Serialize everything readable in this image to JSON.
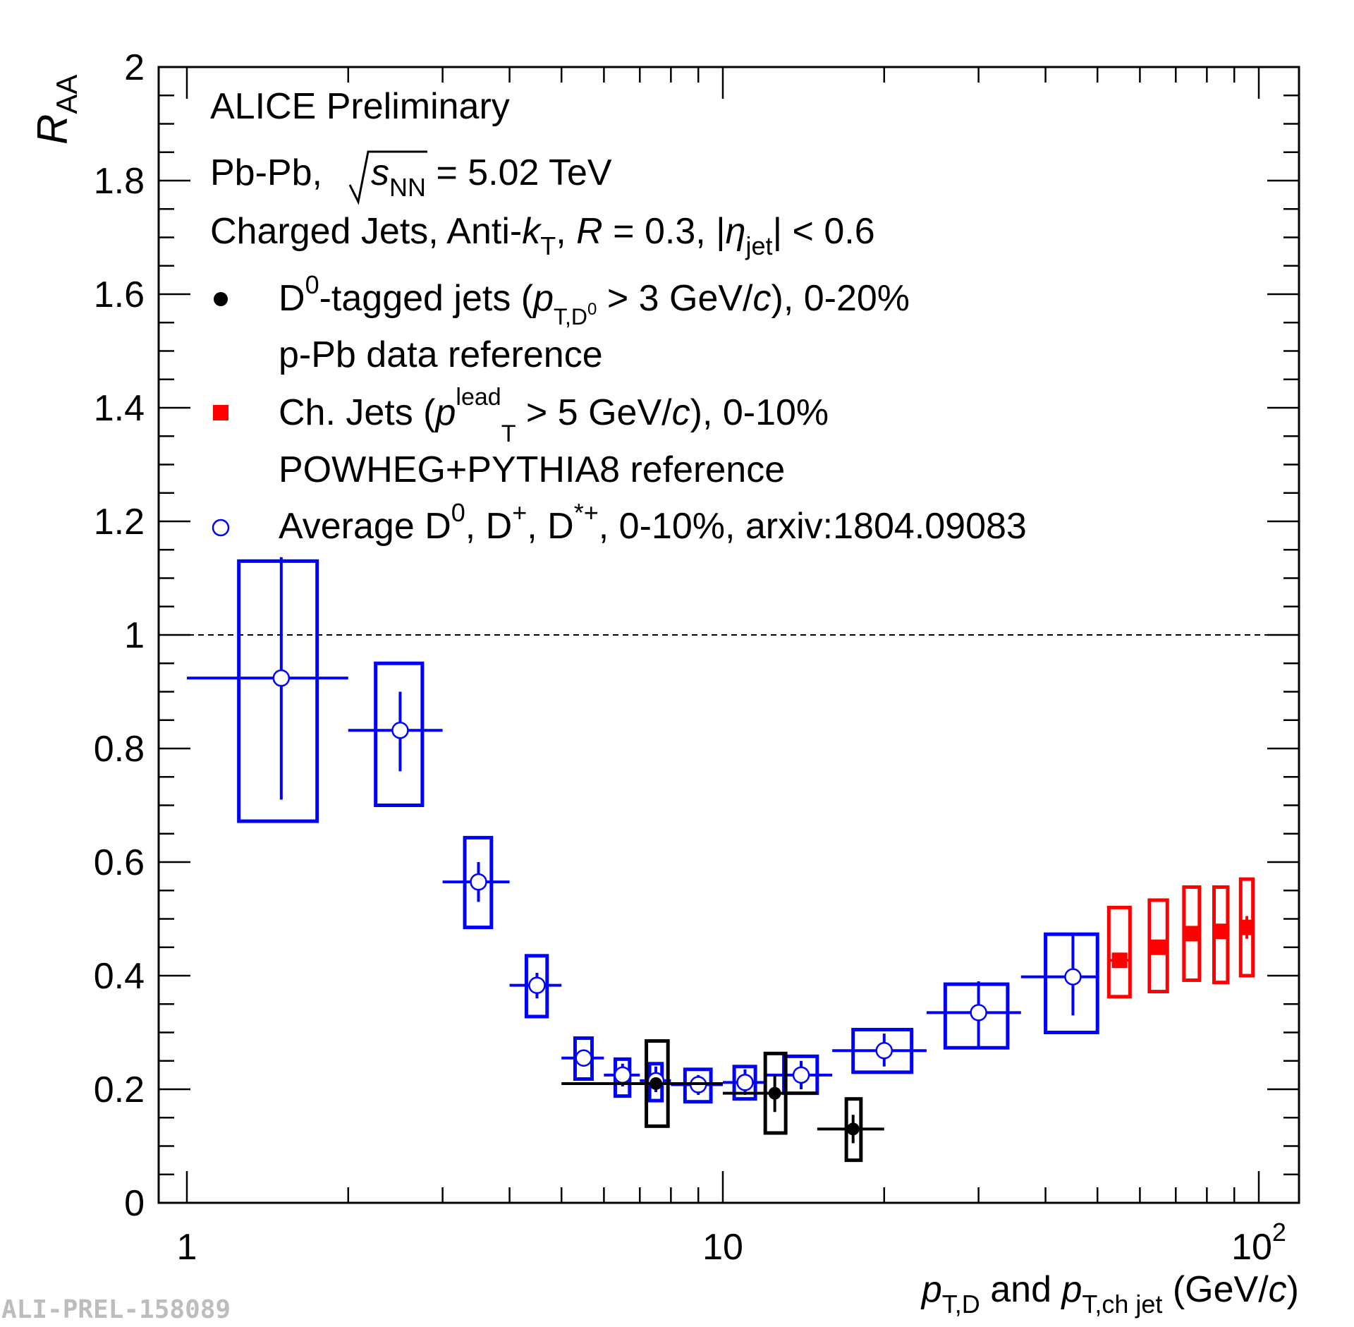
{
  "chart_data": {
    "type": "scatter",
    "x_scale": "log",
    "xlim": [
      1,
      120
    ],
    "ylim": [
      0,
      2
    ],
    "x_ticks": [
      {
        "value": 1,
        "label": "1"
      },
      {
        "value": 10,
        "label": "10"
      },
      {
        "value": 100,
        "label": "10",
        "sup": "2"
      }
    ],
    "y_ticks": [
      {
        "value": 0,
        "label": "0"
      },
      {
        "value": 0.2,
        "label": "0.2"
      },
      {
        "value": 0.4,
        "label": "0.4"
      },
      {
        "value": 0.6,
        "label": "0.6"
      },
      {
        "value": 0.8,
        "label": "0.8"
      },
      {
        "value": 1,
        "label": "1"
      },
      {
        "value": 1.2,
        "label": "1.2"
      },
      {
        "value": 1.4,
        "label": "1.4"
      },
      {
        "value": 1.6,
        "label": "1.6"
      },
      {
        "value": 1.8,
        "label": "1.8"
      },
      {
        "value": 2,
        "label": "2"
      }
    ],
    "ylabel": {
      "main": "R",
      "sub": "AA"
    },
    "xlabel": {
      "p1": "p",
      "sub1": "T,D",
      "mid": " and ",
      "p2": "p",
      "sub2": "T,ch jet",
      "unit_open": " (GeV/",
      "unit_c": "c",
      "unit_close": ")"
    },
    "reference_line": {
      "y": 1,
      "style": "dashed"
    },
    "header": {
      "line1": "ALICE Preliminary",
      "line2": {
        "pre": "Pb-Pb, ",
        "s": "s",
        "sub": "NN",
        "post": " = 5.02 TeV"
      },
      "line3": {
        "a": "Charged Jets, Anti-",
        "k": "k",
        "k_sub": "T",
        "b": ", ",
        "R": "R",
        "c": " = 0.3, |",
        "eta": "η",
        "eta_sub": "jet",
        "d": "| < 0.6"
      }
    },
    "legend": {
      "d0": {
        "a": "D",
        "a_sup": "0",
        "b": "-tagged jets (",
        "p": "p",
        "p_sub": "T,D",
        "p_sub_sup": "0",
        "c": " > 3 GeV/",
        "c_it": "c",
        "d": "), 0-20%",
        "line2": "p-Pb data reference"
      },
      "chjets": {
        "a": "Ch. Jets (",
        "p": "p",
        "p_sup": "lead",
        "p_sub": "T",
        "b": " > 5 GeV/",
        "c_it": "c",
        "c": "), 0-10%",
        "line2": "POWHEG+PYTHIA8 reference"
      },
      "avgD": {
        "a": "Average D",
        "a_sup": "0",
        "b": ", D",
        "b_sup": "+",
        "c": ", D",
        "c_sup": "*+",
        "d": ", 0-10%, arxiv:1804.09083"
      }
    },
    "series": [
      {
        "name": "D0-tagged jets",
        "color": "#000000",
        "marker": "filled-circle",
        "points": [
          {
            "x": 7.5,
            "y": 0.21,
            "xlo": 5,
            "xhi": 10,
            "stat": [
              0.21,
              0.21
            ],
            "sys": [
              0.135,
              0.285
            ],
            "box_x": [
              7.2,
              7.9
            ]
          },
          {
            "x": 12.5,
            "y": 0.193,
            "xlo": 10,
            "xhi": 15,
            "stat": [
              0.16,
              0.225
            ],
            "sys": [
              0.123,
              0.263
            ],
            "box_x": [
              12.0,
              13.1
            ]
          },
          {
            "x": 17.5,
            "y": 0.13,
            "xlo": 15,
            "xhi": 20,
            "stat": [
              0.105,
              0.155
            ],
            "sys": [
              0.075,
              0.183
            ],
            "box_x": [
              17.0,
              18.1
            ]
          }
        ]
      },
      {
        "name": "Ch. Jets",
        "color": "#ff0000",
        "marker": "filled-square",
        "points": [
          {
            "x": 55,
            "y": 0.427,
            "xlo": 52.5,
            "xhi": 57.5,
            "stat": [
              0.427,
              0.427
            ],
            "sys": [
              0.363,
              0.52
            ],
            "box_x": [
              52.5,
              57.5
            ]
          },
          {
            "x": 65,
            "y": 0.45,
            "xlo": 62.5,
            "xhi": 67.5,
            "stat": [
              0.45,
              0.45
            ],
            "sys": [
              0.372,
              0.533
            ],
            "box_x": [
              62.5,
              67.5
            ]
          },
          {
            "x": 75,
            "y": 0.474,
            "xlo": 72.5,
            "xhi": 77.5,
            "stat": [
              0.474,
              0.474
            ],
            "sys": [
              0.392,
              0.556
            ],
            "box_x": [
              72.5,
              77.5
            ]
          },
          {
            "x": 85,
            "y": 0.478,
            "xlo": 82.5,
            "xhi": 87.5,
            "stat": [
              0.478,
              0.478
            ],
            "sys": [
              0.388,
              0.556
            ],
            "box_x": [
              82.5,
              87.5
            ]
          },
          {
            "x": 95,
            "y": 0.485,
            "xlo": 92.5,
            "xhi": 97.5,
            "stat": [
              0.465,
              0.505
            ],
            "sys": [
              0.4,
              0.57
            ],
            "box_x": [
              92.5,
              97.5
            ]
          }
        ]
      },
      {
        "name": "Average D0, D+, D*+",
        "color": "#0000ff",
        "marker": "open-circle",
        "points": [
          {
            "x": 1.5,
            "y": 0.924,
            "xlo": 1,
            "xhi": 2,
            "stat": [
              0.71,
              1.137
            ],
            "sys": [
              0.672,
              1.13
            ],
            "box_x": [
              1.25,
              1.75
            ]
          },
          {
            "x": 2.5,
            "y": 0.832,
            "xlo": 2,
            "xhi": 3,
            "stat": [
              0.76,
              0.9
            ],
            "sys": [
              0.7,
              0.95
            ],
            "box_x": [
              2.25,
              2.75
            ]
          },
          {
            "x": 3.5,
            "y": 0.565,
            "xlo": 3,
            "xhi": 4,
            "stat": [
              0.53,
              0.6
            ],
            "sys": [
              0.485,
              0.643
            ],
            "box_x": [
              3.3,
              3.7
            ]
          },
          {
            "x": 4.5,
            "y": 0.383,
            "xlo": 4,
            "xhi": 5,
            "stat": [
              0.36,
              0.405
            ],
            "sys": [
              0.328,
              0.435
            ],
            "box_x": [
              4.3,
              4.7
            ]
          },
          {
            "x": 5.5,
            "y": 0.255,
            "xlo": 5,
            "xhi": 6,
            "stat": [
              0.24,
              0.27
            ],
            "sys": [
              0.218,
              0.29
            ],
            "box_x": [
              5.3,
              5.7
            ]
          },
          {
            "x": 6.5,
            "y": 0.225,
            "xlo": 6,
            "xhi": 7,
            "stat": [
              0.205,
              0.245
            ],
            "sys": [
              0.188,
              0.253
            ],
            "box_x": [
              6.3,
              6.7
            ]
          },
          {
            "x": 7.5,
            "y": 0.215,
            "xlo": 7,
            "xhi": 8,
            "stat": [
              0.195,
              0.24
            ],
            "sys": [
              0.18,
              0.245
            ],
            "box_x": [
              7.3,
              7.7
            ]
          },
          {
            "x": 9,
            "y": 0.208,
            "xlo": 8,
            "xhi": 10,
            "stat": [
              0.19,
              0.225
            ],
            "sys": [
              0.178,
              0.235
            ],
            "box_x": [
              8.5,
              9.5
            ]
          },
          {
            "x": 11,
            "y": 0.212,
            "xlo": 10,
            "xhi": 12,
            "stat": [
              0.19,
              0.235
            ],
            "sys": [
              0.183,
              0.24
            ],
            "box_x": [
              10.5,
              11.5
            ]
          },
          {
            "x": 14,
            "y": 0.225,
            "xlo": 12,
            "xhi": 16,
            "stat": [
              0.2,
              0.25
            ],
            "sys": [
              0.193,
              0.258
            ],
            "box_x": [
              13.0,
              15.0
            ]
          },
          {
            "x": 20,
            "y": 0.268,
            "xlo": 16,
            "xhi": 24,
            "stat": [
              0.24,
              0.298
            ],
            "sys": [
              0.23,
              0.305
            ],
            "box_x": [
              17.5,
              22.5
            ]
          },
          {
            "x": 30,
            "y": 0.335,
            "xlo": 24,
            "xhi": 36,
            "stat": [
              0.272,
              0.39
            ],
            "sys": [
              0.273,
              0.385
            ],
            "box_x": [
              26.0,
              34.0
            ]
          },
          {
            "x": 45,
            "y": 0.398,
            "xlo": 36,
            "xhi": 50,
            "stat": [
              0.33,
              0.47
            ],
            "sys": [
              0.3,
              0.473
            ],
            "box_x": [
              40.0,
              50.0
            ]
          }
        ]
      }
    ],
    "watermark": "ALI-PREL-158089"
  }
}
